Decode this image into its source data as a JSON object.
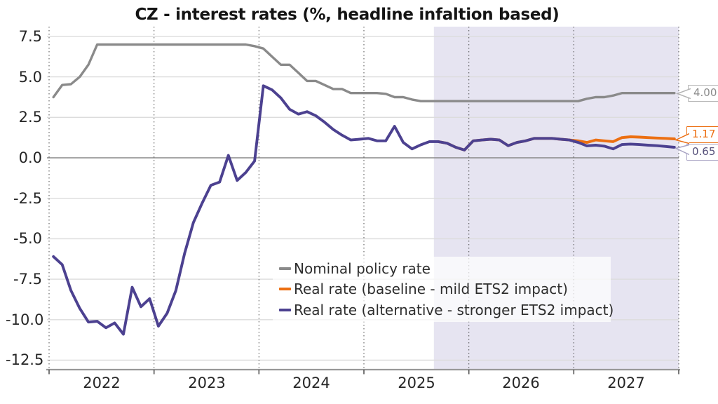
{
  "title": "CZ - interest rates (%, headline infaltion based)",
  "colors": {
    "nominal_line": "#8a8a8a",
    "baseline_line": "#ec6f12",
    "alternative_line": "#4c4190",
    "forecast_shading": "#e6e4f1",
    "gridline": "#dcdcdc",
    "zero_line": "#888888",
    "axis_line": "#999999"
  },
  "axis": {
    "y_labels": [
      "7.5",
      "5.0",
      "2.5",
      "0.0",
      "-2.5",
      "-5.0",
      "-7.5",
      "-10.0",
      "-12.5"
    ],
    "x_labels": [
      "2022",
      "2023",
      "2024",
      "2025",
      "2026",
      "2027"
    ]
  },
  "legend": {
    "items": [
      "Nominal policy rate",
      "Real rate (baseline - mild ETS2 impact)",
      "Real rate (alternative - stronger ETS2 impact)"
    ]
  },
  "chart_data": {
    "type": "line",
    "title": "CZ - interest rates (%, headline infaltion based)",
    "xlabel": "",
    "ylabel": "",
    "x_unit": "month",
    "x_range": [
      "2022-01",
      "2027-12"
    ],
    "ylim": [
      -13.1,
      8.1
    ],
    "y_ticks": [
      7.5,
      5.0,
      2.5,
      0.0,
      -2.5,
      -5.0,
      -7.5,
      -10.0,
      -12.5
    ],
    "x_tick_years": [
      "2022",
      "2023",
      "2024",
      "2025",
      "2026",
      "2027"
    ],
    "grid": {
      "horizontal": "solid-light",
      "vertical": "dotted-yearly",
      "zero_line": "solid-gray"
    },
    "forecast_region": {
      "start": "2025-09",
      "end": "2028-01",
      "fill": "#e6e4f1"
    },
    "legend_position": "lower-center-right",
    "series": [
      {
        "name": "Nominal policy rate",
        "color": "#8a8a8a",
        "start_month": "2022-01",
        "start_month_index": 0,
        "values": [
          3.75,
          4.5,
          4.55,
          5.0,
          5.75,
          7.0,
          7.0,
          7.0,
          7.0,
          7.0,
          7.0,
          7.0,
          7.0,
          7.0,
          7.0,
          7.0,
          7.0,
          7.0,
          7.0,
          7.0,
          7.0,
          7.0,
          7.0,
          6.9,
          6.75,
          6.25,
          5.75,
          5.75,
          5.25,
          4.75,
          4.75,
          4.5,
          4.25,
          4.25,
          4.0,
          4.0,
          4.0,
          4.0,
          3.95,
          3.75,
          3.75,
          3.6,
          3.5,
          3.5,
          3.5,
          3.5,
          3.5,
          3.5,
          3.5,
          3.5,
          3.5,
          3.5,
          3.5,
          3.5,
          3.5,
          3.5,
          3.5,
          3.5,
          3.5,
          3.5,
          3.5,
          3.65,
          3.75,
          3.75,
          3.85,
          4.0,
          4.0,
          4.0,
          4.0,
          4.0,
          4.0,
          4.0
        ]
      },
      {
        "name": "Real rate (baseline - mild ETS2 impact)",
        "color": "#ec6f12",
        "start_month": "2025-09",
        "start_month_index": 44,
        "values": [
          1.0,
          0.9,
          0.65,
          0.48,
          1.05,
          1.1,
          1.15,
          1.1,
          0.75,
          0.95,
          1.05,
          1.2,
          1.2,
          1.2,
          1.15,
          1.1,
          1.05,
          0.95,
          1.1,
          1.05,
          1.0,
          1.25,
          1.3,
          1.28,
          1.25,
          1.22,
          1.2,
          1.17
        ]
      },
      {
        "name": "Real rate (alternative - stronger ETS2 impact)",
        "color": "#4c4190",
        "start_month": "2022-01",
        "start_month_index": 0,
        "values": [
          -6.1,
          -6.6,
          -8.2,
          -9.3,
          -10.15,
          -10.1,
          -10.5,
          -10.2,
          -10.9,
          -8.0,
          -9.2,
          -8.7,
          -10.4,
          -9.6,
          -8.2,
          -5.9,
          -4.0,
          -2.8,
          -1.7,
          -1.5,
          0.15,
          -1.4,
          -0.9,
          -0.2,
          4.45,
          4.2,
          3.7,
          3.0,
          2.7,
          2.85,
          2.6,
          2.2,
          1.75,
          1.4,
          1.1,
          1.15,
          1.2,
          1.05,
          1.05,
          1.95,
          0.95,
          0.55,
          0.8,
          1.0,
          1.0,
          0.9,
          0.65,
          0.48,
          1.05,
          1.1,
          1.15,
          1.1,
          0.75,
          0.95,
          1.05,
          1.2,
          1.2,
          1.2,
          1.15,
          1.1,
          0.95,
          0.74,
          0.78,
          0.72,
          0.55,
          0.82,
          0.85,
          0.82,
          0.78,
          0.75,
          0.7,
          0.65
        ]
      }
    ],
    "end_labels": [
      {
        "text": "4.00",
        "series": "Nominal policy rate",
        "color": "#8a8a8a"
      },
      {
        "text": "1.17",
        "series": "Real rate (baseline - mild ETS2 impact)",
        "color": "#ec6f12"
      },
      {
        "text": "0.65",
        "series": "Real rate (alternative - stronger ETS2 impact)",
        "color": "#55507a"
      }
    ]
  }
}
